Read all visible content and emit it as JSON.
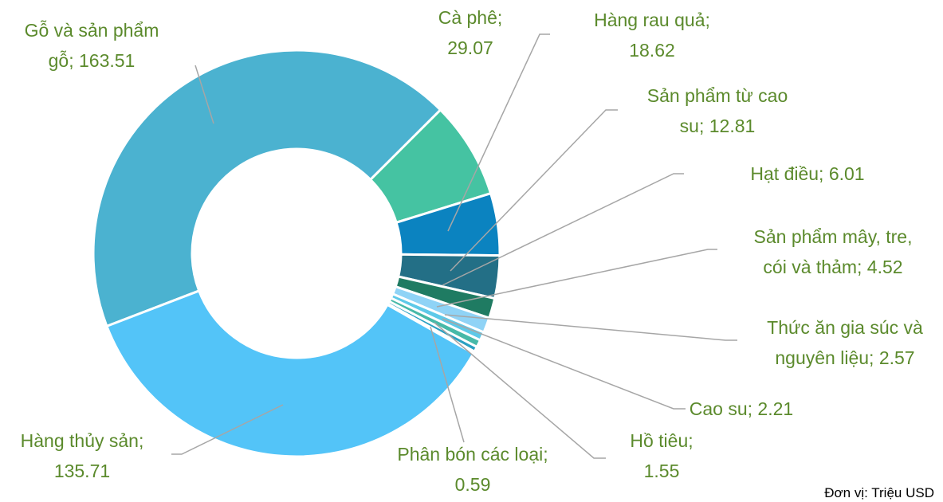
{
  "chart_data": {
    "type": "donut",
    "categories": [
      "Gỗ và sản phẩm gỗ",
      "Cà phê",
      "Hàng rau quả",
      "Sản phẩm từ cao su",
      "Hạt điều",
      "Sản phẩm mây, tre, cói và thảm",
      "Thức ăn gia súc và nguyên liệu",
      "Cao su",
      "Hồ tiêu",
      "Phân bón các loại",
      "Hàng thủy sản"
    ],
    "values": [
      163.51,
      29.07,
      18.62,
      12.81,
      6.01,
      4.52,
      2.57,
      2.21,
      1.55,
      0.59,
      135.71
    ],
    "value_labels": [
      "Gỗ và sản phẩm gỗ; 163.51",
      "Cà phê; 29.07",
      "Hàng rau quả; 18.62",
      "Sản phẩm từ cao su; 12.81",
      "Hạt điều; 6.01",
      "Sản phẩm mây, tre, cói và thảm; 4.52",
      "Thức ăn gia súc và nguyên liệu; 2.57",
      "Cao su; 2.21",
      "Hồ tiêu; 1.55",
      "Phân bón các loại; 0.59",
      "Hàng thủy sản; 135.71"
    ],
    "colors": [
      "#4bb2d0",
      "#45c3a2",
      "#0b83c0",
      "#236f86",
      "#1f7b62",
      "#8fd3f6",
      "#5ec9e8",
      "#47b9a8",
      "#2aa0c2",
      "#74d2f0",
      "#53c4f8"
    ],
    "note": "Đơn vị: Triệu USD"
  }
}
